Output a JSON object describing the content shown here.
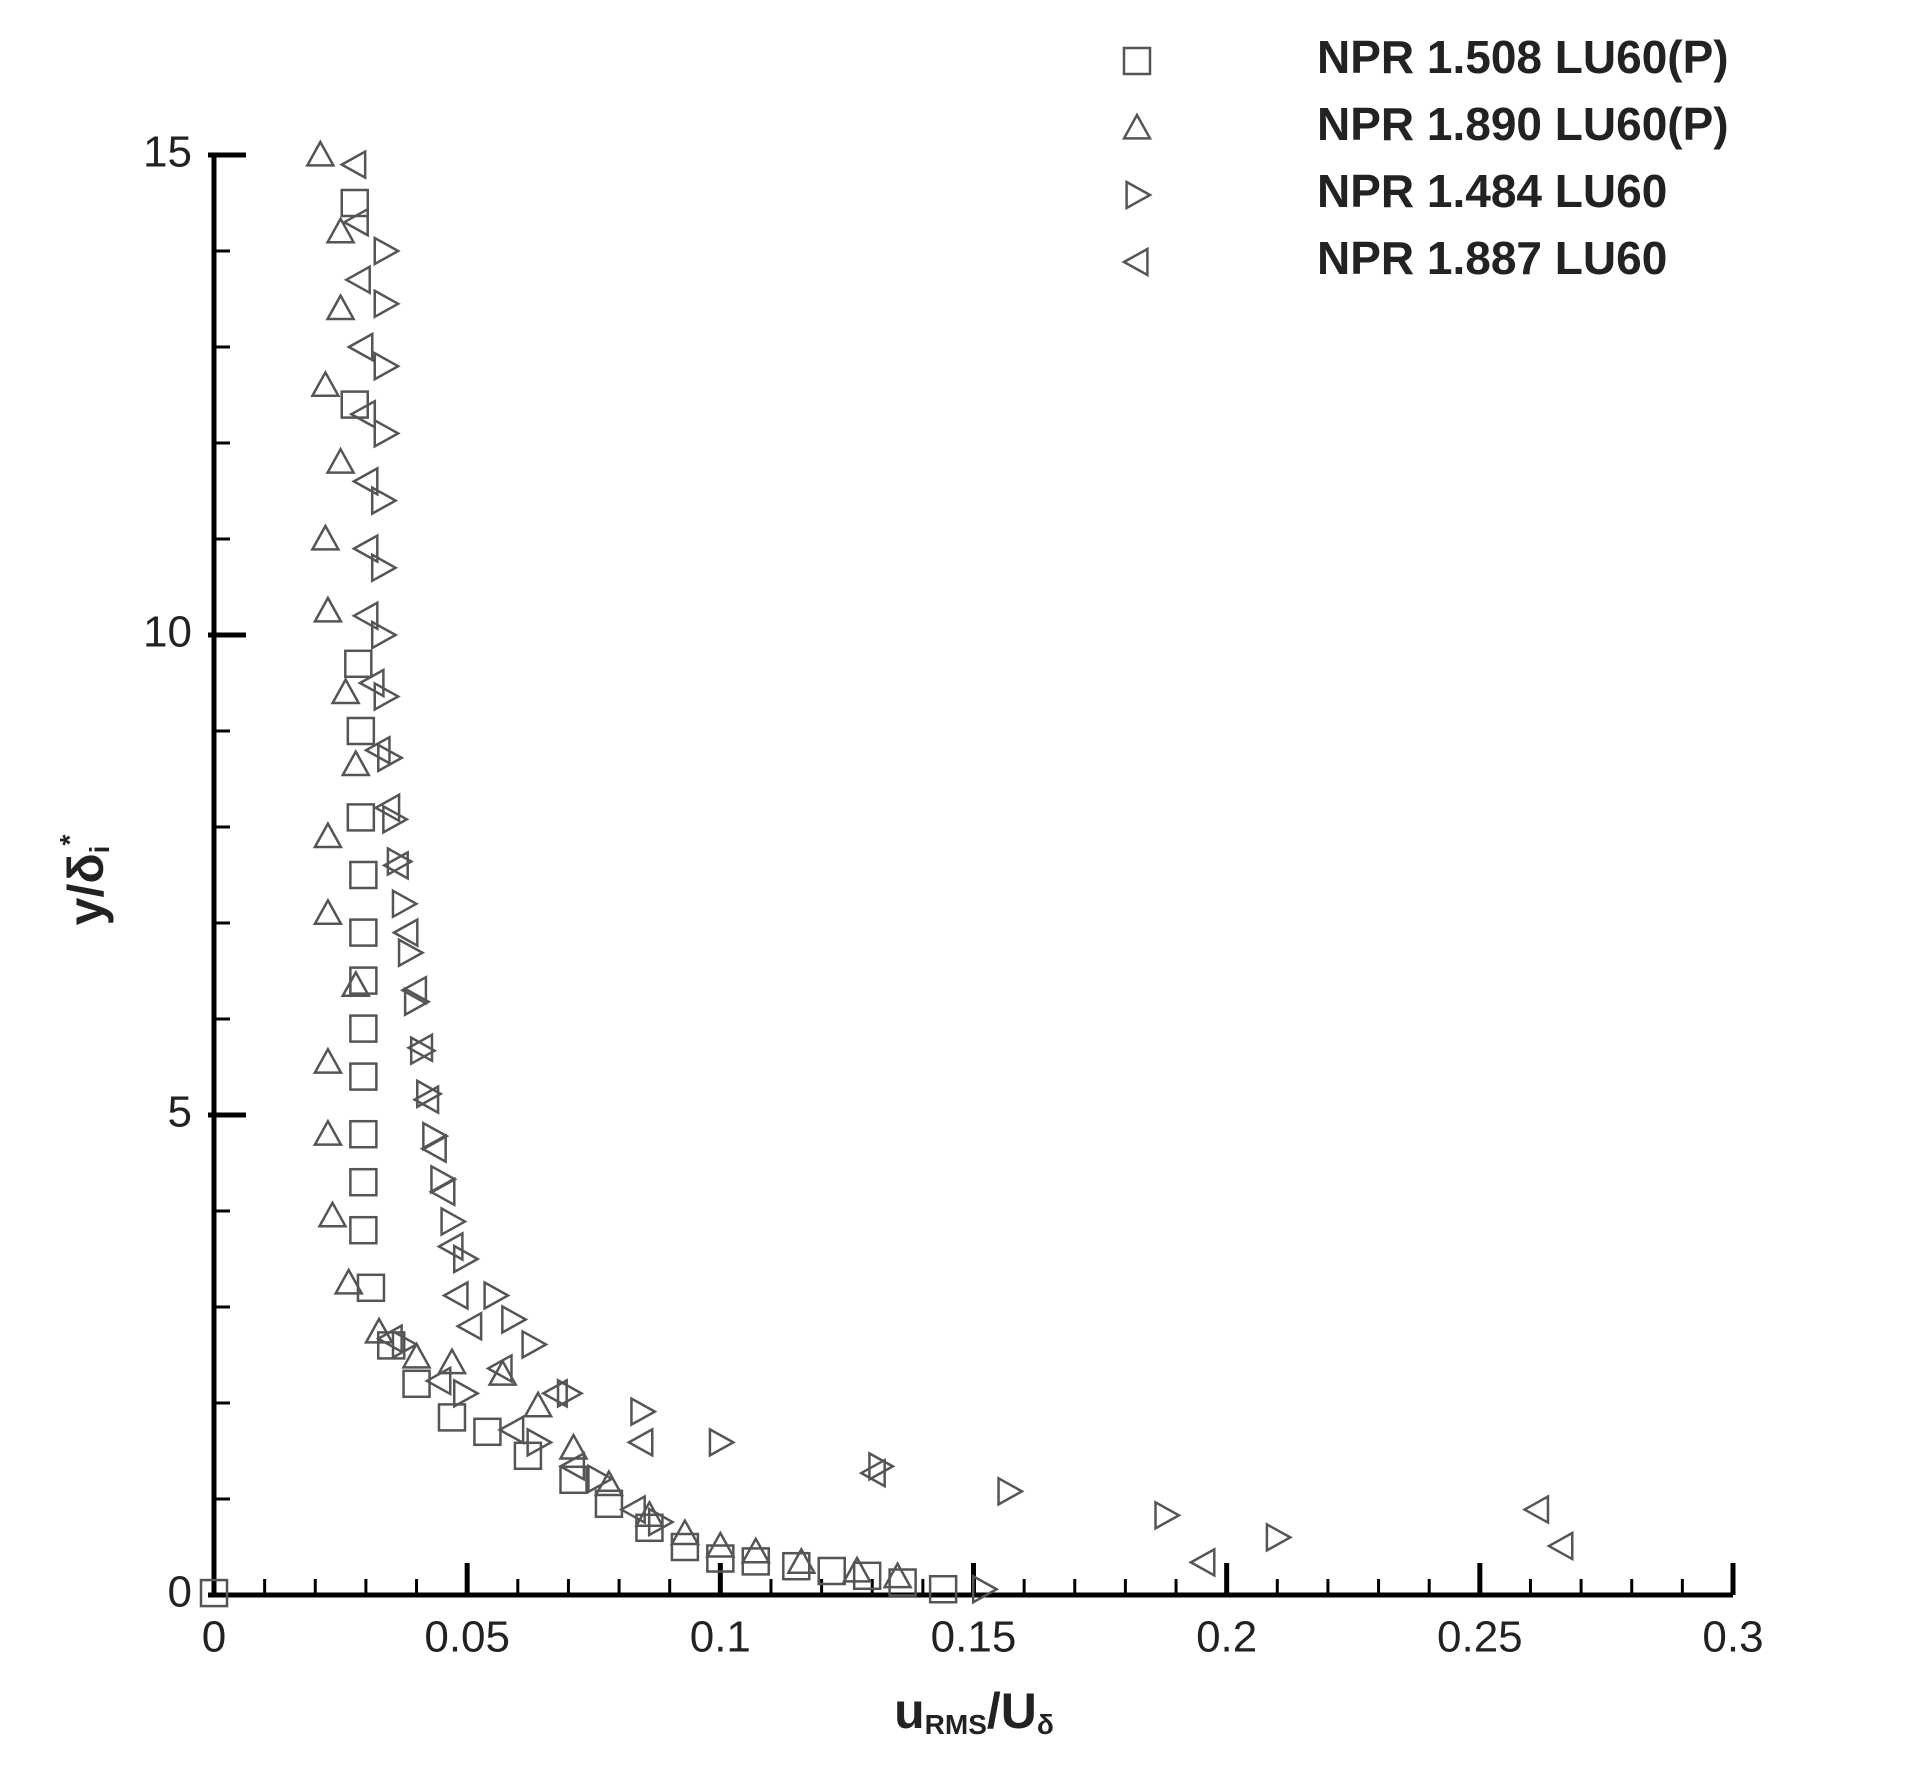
{
  "chart_data": {
    "type": "scatter",
    "x_label": [
      "u",
      "RMS",
      "/U",
      "δ"
    ],
    "y_label": [
      "y/δ",
      "i",
      "*"
    ],
    "xlim": [
      0,
      0.3
    ],
    "ylim": [
      0,
      15
    ],
    "xticks": [
      0,
      0.05,
      0.1,
      0.15,
      0.2,
      0.25,
      0.3
    ],
    "yticks": [
      0,
      5,
      10,
      15
    ],
    "xminorticks": [
      0.01,
      0.02,
      0.03,
      0.04,
      0.06,
      0.07,
      0.08,
      0.09,
      0.11,
      0.12,
      0.13,
      0.14,
      0.16,
      0.17,
      0.18,
      0.19,
      0.21,
      0.22,
      0.23,
      0.24,
      0.26,
      0.27,
      0.28,
      0.29
    ],
    "yminorticks": [
      1,
      2,
      3,
      4,
      6,
      7,
      8,
      9,
      11,
      12,
      13,
      14
    ],
    "legend": "upper right",
    "grid": false,
    "series": [
      {
        "name": "NPR 1.508 LU60(P)",
        "marker": "square",
        "color": "#555555",
        "x": [
          0.0278,
          0.0278,
          0.0285,
          0.029,
          0.029,
          0.0295,
          0.0295,
          0.0295,
          0.0295,
          0.0295,
          0.0295,
          0.0295,
          0.0295,
          0.031,
          0.035,
          0.04,
          0.047,
          0.054,
          0.062,
          0.071,
          0.078,
          0.086,
          0.093,
          0.1,
          0.107,
          0.115,
          0.122,
          0.129,
          0.136,
          0.144,
          0
        ],
        "values": [
          14.5,
          12.4,
          9.7,
          9.0,
          8.1,
          7.5,
          6.9,
          6.4,
          5.9,
          5.4,
          4.8,
          4.3,
          3.8,
          3.2,
          2.6,
          2.2,
          1.85,
          1.7,
          1.45,
          1.2,
          0.95,
          0.7,
          0.5,
          0.38,
          0.35,
          0.3,
          0.25,
          0.2,
          0.13,
          0.06,
          0.02
        ]
      },
      {
        "name": "NPR 1.890 LU60(P)",
        "marker": "triangle-up",
        "color": "#555555",
        "x": [
          0.021,
          0.025,
          0.025,
          0.022,
          0.025,
          0.022,
          0.0225,
          0.026,
          0.028,
          0.0225,
          0.0225,
          0.028,
          0.0225,
          0.0225,
          0.0234,
          0.0266,
          0.0326,
          0.04,
          0.047,
          0.057,
          0.064,
          0.071,
          0.078,
          0.086,
          0.093,
          0.1,
          0.107,
          0.116,
          0.127,
          0.135
        ],
        "values": [
          15.0,
          14.2,
          13.4,
          12.6,
          11.8,
          11.0,
          10.25,
          9.4,
          8.65,
          7.9,
          7.1,
          6.35,
          5.55,
          4.8,
          3.95,
          3.25,
          2.74,
          2.48,
          2.42,
          2.3,
          1.97,
          1.53,
          1.15,
          0.83,
          0.64,
          0.51,
          0.45,
          0.34,
          0.25,
          0.19
        ]
      },
      {
        "name": "NPR 1.484 LU60",
        "marker": "triangle-right",
        "color": "#555555",
        "x": [
          0.0338,
          0.0338,
          0.0338,
          0.0338,
          0.0333,
          0.0333,
          0.0333,
          0.0338,
          0.0345,
          0.0355,
          0.0364,
          0.0374,
          0.0386,
          0.0398,
          0.041,
          0.0422,
          0.0434,
          0.045,
          0.047,
          0.0495,
          0.0555,
          0.059,
          0.063,
          0.07,
          0.0845,
          0.1,
          0.1315,
          0.157,
          0.188,
          0.21,
          0.152,
          0.0374,
          0.0495,
          0.064,
          0.076,
          0.088
        ],
        "values": [
          14.0,
          13.45,
          12.8,
          12.1,
          11.4,
          10.7,
          10.0,
          9.36,
          8.72,
          8.08,
          7.64,
          7.2,
          6.69,
          6.18,
          5.67,
          5.22,
          4.78,
          4.33,
          3.89,
          3.5,
          3.12,
          2.87,
          2.61,
          2.1,
          1.91,
          1.59,
          1.34,
          1.08,
          0.83,
          0.6,
          0.06,
          2.61,
          2.1,
          1.59,
          1.21,
          0.76
        ]
      },
      {
        "name": "NPR 1.887 LU60",
        "marker": "triangle-left",
        "color": "#555555",
        "x": [
          0.0278,
          0.0283,
          0.0287,
          0.0292,
          0.0297,
          0.0302,
          0.0302,
          0.0302,
          0.0314,
          0.0326,
          0.0345,
          0.0362,
          0.0381,
          0.0398,
          0.041,
          0.0422,
          0.0437,
          0.0454,
          0.047,
          0.048,
          0.0507,
          0.0567,
          0.0676,
          0.0845,
          0.1304,
          0.2614,
          0.2662,
          0.1955,
          0.035,
          0.0446,
          0.059,
          0.071,
          0.083
        ],
        "values": [
          14.9,
          14.3,
          13.7,
          13.0,
          12.3,
          11.6,
          10.9,
          10.2,
          9.5,
          8.8,
          8.2,
          7.6,
          6.9,
          6.3,
          5.7,
          5.16,
          4.65,
          4.2,
          3.63,
          3.12,
          2.8,
          2.36,
          2.1,
          1.59,
          1.27,
          0.89,
          0.51,
          0.34,
          2.67,
          2.23,
          1.72,
          1.34,
          0.89
        ]
      }
    ]
  }
}
